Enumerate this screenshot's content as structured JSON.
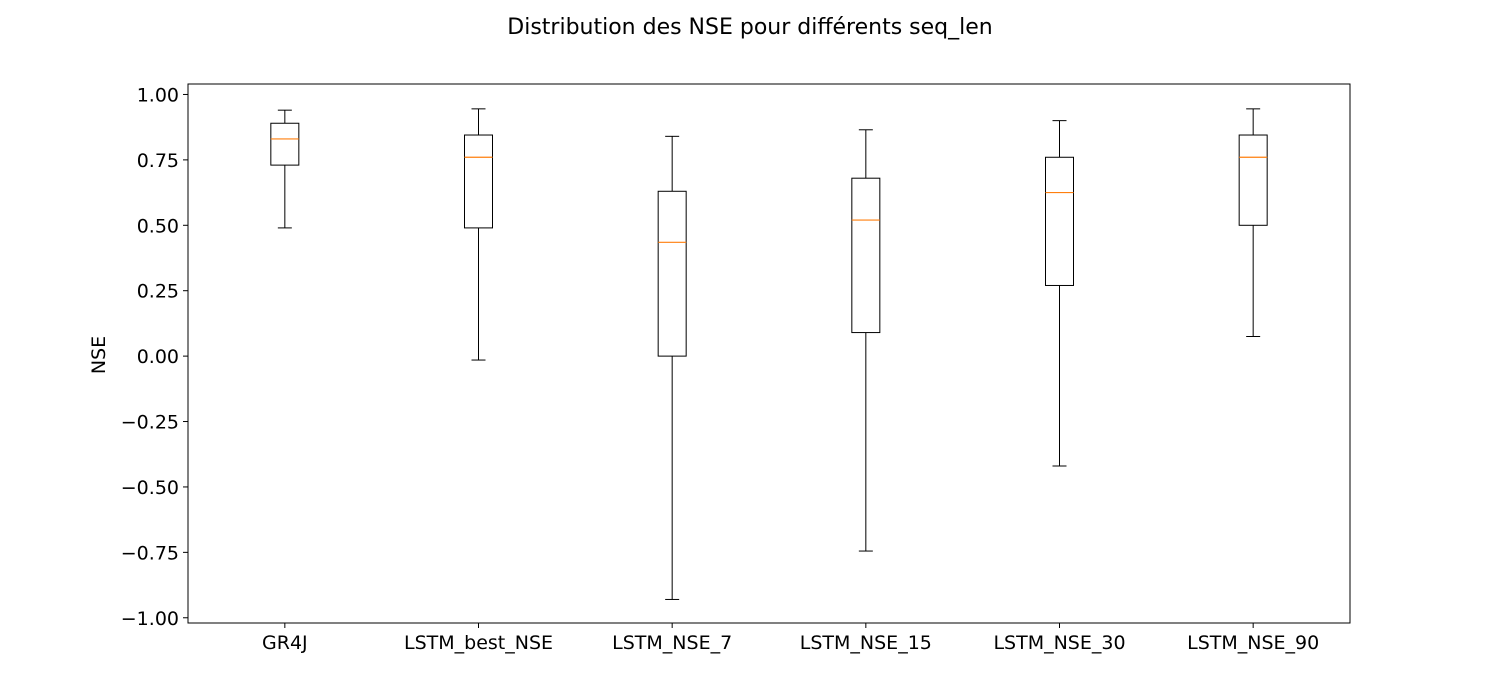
{
  "chart_data": {
    "type": "boxplot",
    "title": "Distribution des NSE pour différents seq_len",
    "xlabel": "",
    "ylabel": "NSE",
    "ylim": [
      -1.02,
      1.04
    ],
    "yticks": [
      -1.0,
      -0.75,
      -0.5,
      -0.25,
      0.0,
      0.25,
      0.5,
      0.75,
      1.0
    ],
    "ytick_labels": [
      "−1.00",
      "−0.75",
      "−0.50",
      "−0.25",
      "0.00",
      "0.25",
      "0.50",
      "0.75",
      "1.00"
    ],
    "grid": false,
    "categories": [
      "GR4J",
      "LSTM_best_NSE",
      "LSTM_NSE_7",
      "LSTM_NSE_15",
      "LSTM_NSE_30",
      "LSTM_NSE_90"
    ],
    "boxes": [
      {
        "whisker_low": 0.49,
        "q1": 0.73,
        "median": 0.83,
        "q3": 0.89,
        "whisker_high": 0.94
      },
      {
        "whisker_low": -0.015,
        "q1": 0.49,
        "median": 0.76,
        "q3": 0.845,
        "whisker_high": 0.945
      },
      {
        "whisker_low": -0.93,
        "q1": 0.0,
        "median": 0.435,
        "q3": 0.63,
        "whisker_high": 0.84
      },
      {
        "whisker_low": -0.745,
        "q1": 0.09,
        "median": 0.52,
        "q3": 0.68,
        "whisker_high": 0.865
      },
      {
        "whisker_low": -0.42,
        "q1": 0.27,
        "median": 0.625,
        "q3": 0.76,
        "whisker_high": 0.9
      },
      {
        "whisker_low": 0.075,
        "q1": 0.5,
        "median": 0.76,
        "q3": 0.845,
        "whisker_high": 0.945
      }
    ],
    "colors": {
      "box": "#000000",
      "median": "#ff7f0e",
      "axes": "#000000"
    }
  }
}
